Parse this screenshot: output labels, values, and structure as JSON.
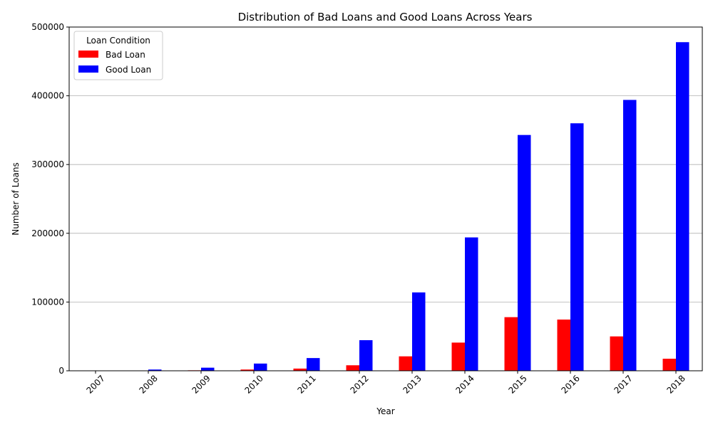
{
  "chart_data": {
    "type": "bar",
    "title": "Distribution of Bad Loans and Good Loans Across Years",
    "xlabel": "Year",
    "ylabel": "Number of Loans",
    "categories": [
      "2007",
      "2008",
      "2009",
      "2010",
      "2011",
      "2012",
      "2013",
      "2014",
      "2015",
      "2016",
      "2017",
      "2018"
    ],
    "series": [
      {
        "name": "Bad Loan",
        "color": "#ff0000",
        "values": [
          200,
          500,
          700,
          1800,
          3200,
          8000,
          21000,
          41000,
          78000,
          74500,
          50000,
          17500
        ]
      },
      {
        "name": "Good Loan",
        "color": "#0000ff",
        "values": [
          400,
          1800,
          4500,
          10500,
          18500,
          44500,
          114000,
          194000,
          343000,
          360000,
          394000,
          478000
        ]
      }
    ],
    "ylim": [
      0,
      500000
    ],
    "yticks": [
      0,
      100000,
      200000,
      300000,
      400000,
      500000
    ],
    "grid": "y",
    "legend": {
      "title": "Loan Condition",
      "position": "top-left"
    }
  }
}
